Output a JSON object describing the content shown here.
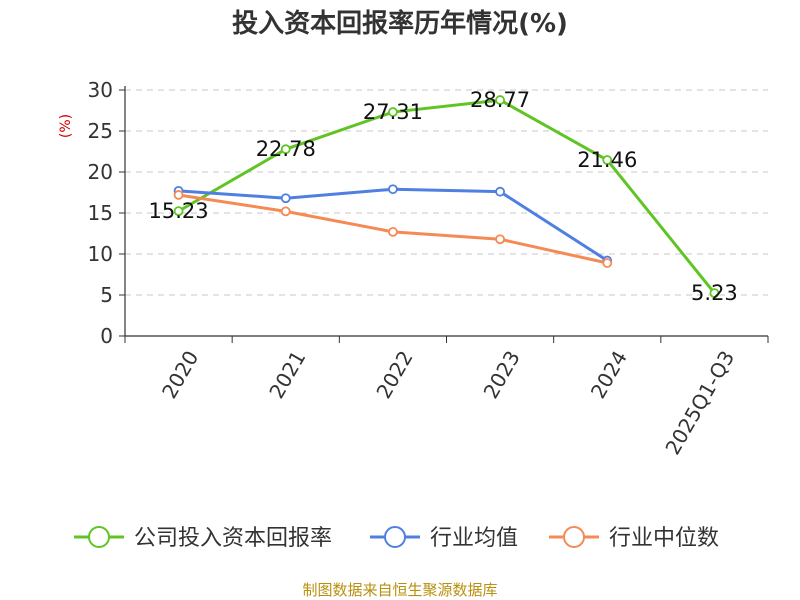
{
  "colors": {
    "company": "#5fc424",
    "industry_avg": "#4f7fe0",
    "industry_median": "#f58a55",
    "ylabel": "#cc0000",
    "source": "#b8900e"
  },
  "source_note": "制图数据来自恒生聚源数据库",
  "chart_data": {
    "type": "line",
    "title": "投入资本回报率历年情况(%)",
    "ylabel": "(%)",
    "xlabel": "",
    "ylim": [
      0,
      30
    ],
    "yticks": [
      0,
      5,
      10,
      15,
      20,
      25,
      30
    ],
    "categories": [
      "2020",
      "2021",
      "2022",
      "2023",
      "2024",
      "2025Q1-Q3"
    ],
    "grid": true,
    "legend_position": "bottom",
    "series": [
      {
        "name": "公司投入资本回报率",
        "color_key": "company",
        "values": [
          15.23,
          22.78,
          27.31,
          28.77,
          21.46,
          5.23
        ],
        "labels": [
          "15.23",
          "22.78",
          "27.31",
          "28.77",
          "21.46",
          "5.23"
        ]
      },
      {
        "name": "行业均值",
        "color_key": "industry_avg",
        "values": [
          17.7,
          16.8,
          17.9,
          17.6,
          9.2,
          null
        ]
      },
      {
        "name": "行业中位数",
        "color_key": "industry_median",
        "values": [
          17.2,
          15.2,
          12.7,
          11.8,
          8.9,
          null
        ]
      }
    ]
  }
}
